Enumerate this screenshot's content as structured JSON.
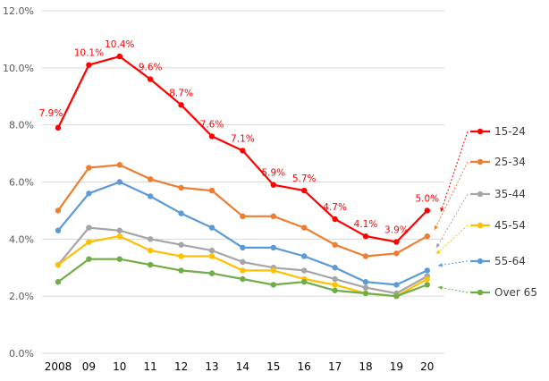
{
  "chart_data": {
    "type": "line",
    "title": "",
    "xlabel": "",
    "ylabel": "",
    "categories": [
      "2008",
      "09",
      "10",
      "11",
      "12",
      "13",
      "14",
      "15",
      "16",
      "17",
      "18",
      "19",
      "20"
    ],
    "ylim": [
      0,
      12
    ],
    "yticks": [
      "0.0%",
      "2.0%",
      "4.0%",
      "6.0%",
      "8.0%",
      "10.0%",
      "12.0%"
    ],
    "grid": true,
    "legend_position": "right",
    "series": [
      {
        "name": "15-24",
        "color": "#ff0000",
        "values": [
          7.9,
          10.1,
          10.4,
          9.6,
          8.7,
          7.6,
          7.1,
          5.9,
          5.7,
          4.7,
          4.1,
          3.9,
          5.0
        ],
        "labels": [
          "7.9%",
          "10.1%",
          "10.4%",
          "9.6%",
          "8.7%",
          "7.6%",
          "7.1%",
          "5.9%",
          "5.7%",
          "4.7%",
          "4.1%",
          "3.9%",
          "5.0%"
        ]
      },
      {
        "name": "25-34",
        "color": "#ed7d31",
        "values": [
          5.0,
          6.5,
          6.6,
          6.1,
          5.8,
          5.7,
          4.8,
          4.8,
          4.4,
          3.8,
          3.4,
          3.5,
          4.1
        ]
      },
      {
        "name": "35-44",
        "color": "#a5a5a5",
        "values": [
          3.1,
          4.4,
          4.3,
          4.0,
          3.8,
          3.6,
          3.2,
          3.0,
          2.9,
          2.6,
          2.3,
          2.1,
          2.7
        ]
      },
      {
        "name": "45-54",
        "color": "#ffc000",
        "values": [
          3.1,
          3.9,
          4.1,
          3.6,
          3.4,
          3.4,
          2.9,
          2.9,
          2.6,
          2.4,
          2.1,
          2.0,
          2.6
        ]
      },
      {
        "name": "55-64",
        "color": "#5b9bd5",
        "values": [
          4.3,
          5.6,
          6.0,
          5.5,
          4.9,
          4.4,
          3.7,
          3.7,
          3.4,
          3.0,
          2.5,
          2.4,
          2.9
        ]
      },
      {
        "name": "Over 65",
        "color": "#70ad47",
        "values": [
          2.5,
          3.3,
          3.3,
          3.1,
          2.9,
          2.8,
          2.6,
          2.4,
          2.5,
          2.2,
          2.1,
          2.0,
          2.4
        ]
      }
    ]
  }
}
